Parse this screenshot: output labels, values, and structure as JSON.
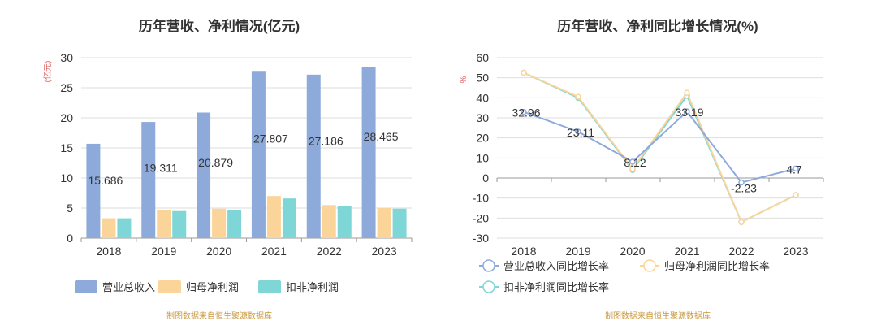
{
  "chart_data": [
    {
      "type": "bar",
      "title": "历年营收、净利情况(亿元)",
      "ylabel": "(亿元)",
      "xlabel": "",
      "ylim": [
        0,
        30
      ],
      "yticks": [
        0,
        5,
        10,
        15,
        20,
        25,
        30
      ],
      "categories": [
        "2018",
        "2019",
        "2020",
        "2021",
        "2022",
        "2023"
      ],
      "series": [
        {
          "name": "营业总收入",
          "color": "#8eaadb",
          "values": [
            15.686,
            19.311,
            20.879,
            27.807,
            27.186,
            28.465
          ],
          "labels": [
            "15.686",
            "19.311",
            "20.879",
            "27.807",
            "27.186",
            "28.465"
          ]
        },
        {
          "name": "归母净利润",
          "color": "#fbd49a",
          "values": [
            3.3,
            4.7,
            4.9,
            7.0,
            5.5,
            5.0
          ]
        },
        {
          "name": "扣非净利润",
          "color": "#7fd6d6",
          "values": [
            3.3,
            4.5,
            4.7,
            6.6,
            5.3,
            4.9
          ]
        }
      ],
      "grid": true,
      "legend_position": "bottom",
      "source": "制图数据来自恒生聚源数据库"
    },
    {
      "type": "line",
      "title": "历年营收、净利同比增长情况(%)",
      "ylabel": "%",
      "xlabel": "",
      "ylim": [
        -30,
        60
      ],
      "yticks": [
        -30,
        -20,
        -10,
        0,
        10,
        20,
        30,
        40,
        50,
        60
      ],
      "categories": [
        "2018",
        "2019",
        "2020",
        "2021",
        "2022",
        "2023"
      ],
      "series": [
        {
          "name": "营业总收入同比增长率",
          "color": "#8eaadb",
          "values": [
            32.96,
            23.11,
            8.12,
            33.19,
            -2.23,
            4.7
          ],
          "labels": [
            "32.96",
            "23.11",
            "8.12",
            "33.19",
            "-2.23",
            "4.7"
          ]
        },
        {
          "name": "归母净利润同比增长率",
          "color": "#fbd49a",
          "values": [
            52.5,
            40.5,
            4.5,
            42.5,
            -22,
            -8.5
          ]
        },
        {
          "name": "扣非净利润同比增长率",
          "color": "#7fd6d6",
          "values": [
            52.5,
            40,
            4,
            41,
            -22,
            -8.5
          ]
        }
      ],
      "grid": true,
      "legend_position": "bottom",
      "source": "制图数据来自恒生聚源数据库"
    }
  ]
}
